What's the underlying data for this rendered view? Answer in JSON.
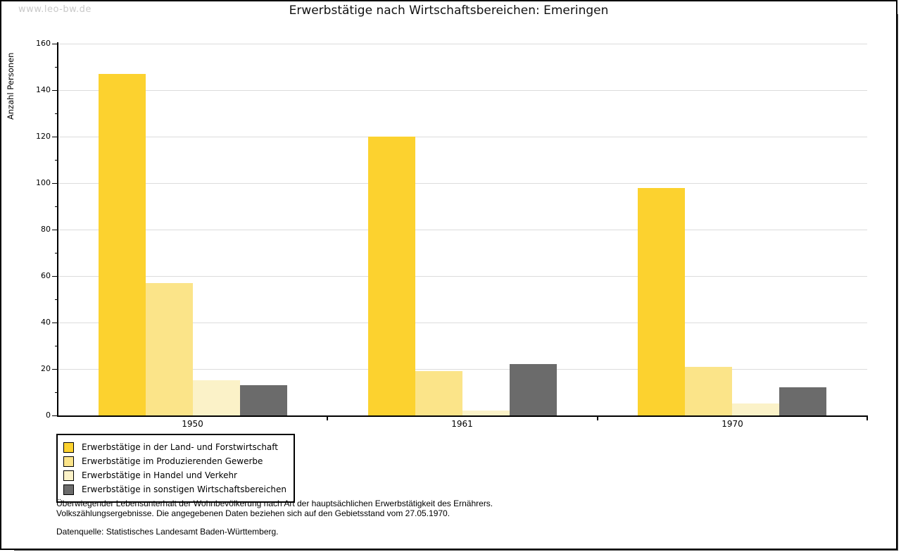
{
  "watermark": "www.leo-bw.de",
  "title": "Erwerbstätige nach Wirtschaftsbereichen: Emeringen",
  "chart_data": {
    "type": "bar",
    "title": "Erwerbstätige nach Wirtschaftsbereichen: Emeringen",
    "xlabel": "",
    "ylabel": "Anzahl Personen",
    "categories": [
      "1950",
      "1961",
      "1970"
    ],
    "series": [
      {
        "name": "Erwerbstätige in der Land- und Forstwirtschaft",
        "color": "#FCD22F",
        "values": [
          147,
          120,
          98
        ]
      },
      {
        "name": "Erwerbstätige im Produzierenden Gewerbe",
        "color": "#FBE489",
        "values": [
          57,
          19,
          21
        ]
      },
      {
        "name": "Erwerbstätige in Handel und Verkehr",
        "color": "#FBF2C8",
        "values": [
          15,
          2,
          5
        ]
      },
      {
        "name": "Erwerbstätige in sonstigen Wirtschaftsbereichen",
        "color": "#6B6B6B",
        "values": [
          13,
          22,
          12
        ]
      }
    ],
    "ylim": [
      0,
      160
    ],
    "ytick_step": 20,
    "yminor_step": 10,
    "grid": "horizontal",
    "gridline_color": "#dcdcdc",
    "legend_position": "bottom-left"
  },
  "footnotes": {
    "line1": "Überwiegender Lebensunterhalt der Wohnbevölkerung nach Art der hauptsächlichen Erwerbstätigkeit des Ernährers.",
    "line2": "Volkszählungsergebnisse. Die angegebenen Daten beziehen sich auf den Gebietsstand vom 27.05.1970.",
    "source": "Datenquelle: Statistisches Landesamt Baden-Württemberg."
  }
}
